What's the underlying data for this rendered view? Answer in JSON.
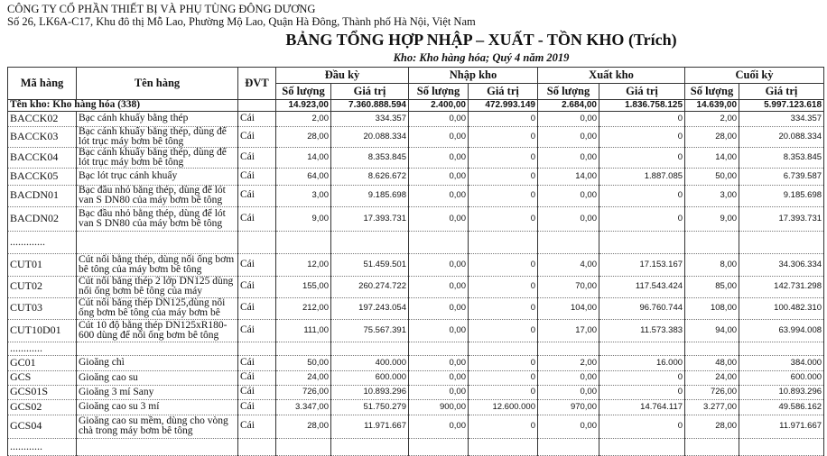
{
  "header": {
    "company": "CÔNG TY CỔ PHẦN THIẾT BỊ VÀ PHỤ TÙNG ĐÔNG DƯƠNG",
    "address": "Số 26, LK6A-C17, Khu đô thị Mỗ Lao, Phường Mộ Lao, Quận Hà Đông, Thành phố Hà Nội, Việt Nam",
    "title": "BẢNG TỔNG HỢP NHẬP – XUẤT - TỒN KHO (Trích)",
    "subtitle": "Kho: Kho hàng hóa; Quý 4 năm 2019"
  },
  "table": {
    "headers": {
      "code": "Mã hàng",
      "name": "Tên hàng",
      "unit": "ĐVT",
      "opening": "Đầu kỳ",
      "in": "Nhập kho",
      "out": "Xuất kho",
      "closing": "Cuối kỳ",
      "qty": "Số lượng",
      "value": "Giá trị"
    },
    "total": {
      "label": "Tên kho: Kho hàng hóa (338)",
      "values": [
        "14.923,00",
        "7.360.888.594",
        "2.400,00",
        "472.993.149",
        "2.684,00",
        "1.836.758.125",
        "14.639,00",
        "5.997.123.618"
      ]
    },
    "rows": [
      {
        "code": "BACCK02",
        "name": "Bạc cánh khuấy bằng thép",
        "unit": "Cái",
        "values": [
          "2,00",
          "334.357",
          "0,00",
          "0",
          "0,00",
          "0",
          "2,00",
          "334.357"
        ]
      },
      {
        "code": "BACCK03",
        "name": "Bạc cánh khuấy bằng thép, dùng để lót trục máy bơm bê tông",
        "unit": "Cái",
        "values": [
          "28,00",
          "20.088.334",
          "0,00",
          "0",
          "0,00",
          "0",
          "28,00",
          "20.088.334"
        ]
      },
      {
        "code": "BACCK04",
        "name": "Bạc cánh khuấy bằng thép, dùng để lót trục máy bơm bê tông",
        "unit": "Cái",
        "values": [
          "14,00",
          "8.353.845",
          "0,00",
          "0",
          "0,00",
          "0",
          "14,00",
          "8.353.845"
        ]
      },
      {
        "code": "BACCK05",
        "name": "Bạc lót trục cánh khuấy",
        "unit": "Cái",
        "values": [
          "64,00",
          "8.626.672",
          "0,00",
          "0",
          "14,00",
          "1.887.085",
          "50,00",
          "6.739.587"
        ]
      },
      {
        "code": "BACDN01",
        "name": "Bạc đầu nhỏ bằng thép, dùng để lót van S DN80 của máy bơm bê tông",
        "unit": "Cái",
        "values": [
          "3,00",
          "9.185.698",
          "0,00",
          "0",
          "0,00",
          "0",
          "3,00",
          "9.185.698"
        ]
      },
      {
        "code": "BACDN02",
        "name": "Bạc đầu nhỏ bằng thép, dùng để lót van S DN80 của máy bơm bê tông",
        "unit": "Cái",
        "values": [
          "9,00",
          "17.393.731",
          "0,00",
          "0",
          "0,00",
          "0",
          "9,00",
          "17.393.731"
        ]
      },
      {
        "code": ".............",
        "name": "",
        "unit": "",
        "values": [
          "",
          "",
          "",
          "",
          "",
          "",
          "",
          ""
        ]
      },
      {
        "code": "CUT01",
        "name": "Cút nối bằng thép, dùng nối ống bơm bê tông của máy bơm bê tông",
        "unit": "Cái",
        "values": [
          "12,00",
          "51.459.501",
          "0,00",
          "0",
          "4,00",
          "17.153.167",
          "8,00",
          "34.306.334"
        ]
      },
      {
        "code": "CUT02",
        "name": "Cút nối bằng thép 2 lớp DN125 dùng nối ống bơm bê tông của máy",
        "unit": "Cái",
        "values": [
          "155,00",
          "260.274.722",
          "0,00",
          "0",
          "70,00",
          "117.543.424",
          "85,00",
          "142.731.298"
        ]
      },
      {
        "code": "CUT03",
        "name": "Cút nối bằng thép DN125,dùng nối ống bơm bê tông của máy bơm bê",
        "unit": "Cái",
        "values": [
          "212,00",
          "197.243.054",
          "0,00",
          "0",
          "104,00",
          "96.760.744",
          "108,00",
          "100.482.310"
        ]
      },
      {
        "code": "CUT10D01",
        "name": "Cút 10 độ bằng thép DN125xR180-600 dùng để nối ống bơm bê tông",
        "unit": "Cái",
        "values": [
          "111,00",
          "75.567.391",
          "0,00",
          "0",
          "17,00",
          "11.573.383",
          "94,00",
          "63.994.008"
        ]
      },
      {
        "code": "............",
        "name": "",
        "unit": "",
        "values": [
          "",
          "",
          "",
          "",
          "",
          "",
          "",
          ""
        ]
      },
      {
        "code": "GC01",
        "name": "Gioăng chì",
        "unit": "Cái",
        "values": [
          "50,00",
          "400.000",
          "0,00",
          "0",
          "2,00",
          "16.000",
          "48,00",
          "384.000"
        ]
      },
      {
        "code": "GCS",
        "name": "Gioăng cao su",
        "unit": "Cái",
        "values": [
          "24,00",
          "600.000",
          "0,00",
          "0",
          "0,00",
          "0",
          "24,00",
          "600.000"
        ]
      },
      {
        "code": "GCS01S",
        "name": "Gioăng 3 mí Sany",
        "unit": "Cái",
        "values": [
          "726,00",
          "10.893.296",
          "0,00",
          "0",
          "0,00",
          "0",
          "726,00",
          "10.893.296"
        ]
      },
      {
        "code": "GCS02",
        "name": "Gioăng cao su 3 mí",
        "unit": "Cái",
        "values": [
          "3.347,00",
          "51.750.279",
          "900,00",
          "12.600.000",
          "970,00",
          "14.764.117",
          "3.277,00",
          "49.586.162"
        ]
      },
      {
        "code": "GCS04",
        "name": "Gioăng cao su mềm, dùng cho vòng chà trong máy bơm bê tông",
        "unit": "Cái",
        "values": [
          "28,00",
          "11.971.667",
          "0,00",
          "0",
          "0,00",
          "0",
          "28,00",
          "11.971.667"
        ]
      },
      {
        "code": "............",
        "name": "",
        "unit": "",
        "values": [
          "",
          "",
          "",
          "",
          "",
          "",
          "",
          ""
        ]
      }
    ]
  }
}
